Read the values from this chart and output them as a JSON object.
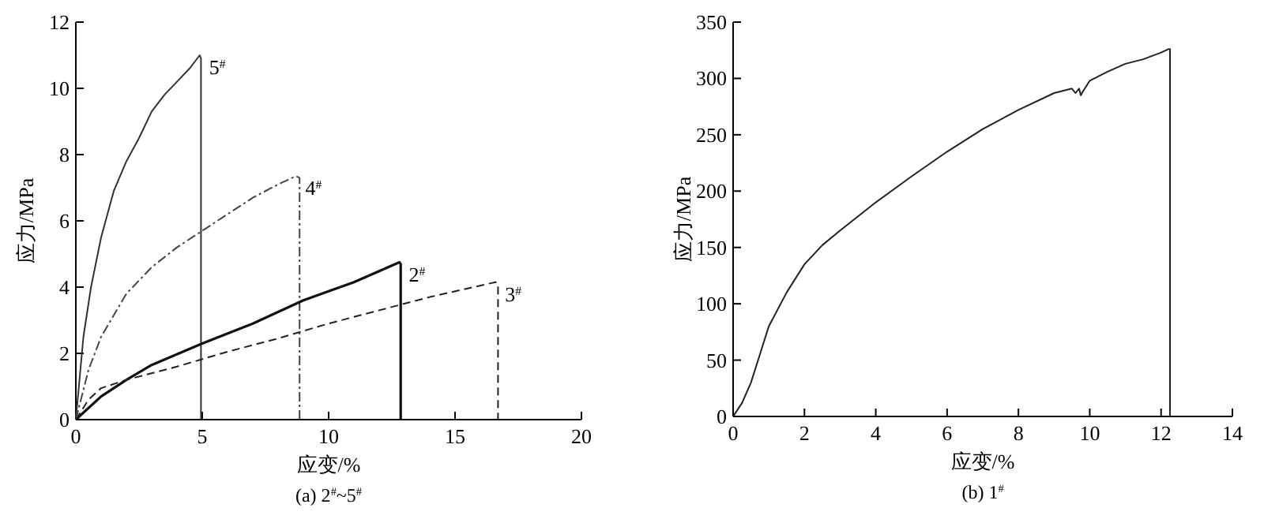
{
  "chart_data": [
    {
      "type": "line",
      "title": "(a) 2$^{#}$~5$^{#}$",
      "xlabel": "应变/%",
      "ylabel": "应力/MPa",
      "xlim": [
        0,
        20
      ],
      "xticks": [
        0,
        5,
        10,
        15,
        20
      ],
      "ylim": [
        0,
        12
      ],
      "yticks": [
        0,
        2,
        4,
        6,
        8,
        10,
        12
      ],
      "grid": false,
      "marker": "none",
      "series": [
        {
          "name": "5$^{#}$",
          "color": "#333333",
          "line_style": "solid",
          "x": [
            0,
            0.3,
            0.6,
            1,
            1.5,
            2,
            2.5,
            3,
            3.5,
            4,
            4.5,
            4.9,
            4.95,
            4.95
          ],
          "values": [
            0,
            2.5,
            4,
            5.5,
            6.9,
            7.8,
            8.5,
            9.3,
            9.8,
            10.2,
            10.6,
            11,
            10.9,
            0
          ]
        },
        {
          "name": "4$^{#}$",
          "color": "#444444",
          "line_style": "dashdot",
          "x": [
            0,
            0.5,
            1,
            2,
            3,
            4,
            5,
            6,
            7,
            8,
            8.7,
            8.85,
            8.85
          ],
          "values": [
            0,
            1.5,
            2.5,
            3.8,
            4.6,
            5.2,
            5.7,
            6.2,
            6.7,
            7.1,
            7.35,
            7.3,
            0
          ]
        },
        {
          "name": "2$^{#}$",
          "color": "#111111",
          "line_style": "solid",
          "x": [
            0,
            1,
            2,
            3,
            5,
            7,
            9,
            11,
            12.8,
            12.85,
            12.85
          ],
          "values": [
            0,
            0.7,
            1.2,
            1.65,
            2.3,
            2.9,
            3.6,
            4.15,
            4.75,
            4.7,
            0
          ]
        },
        {
          "name": "3$^{#}$",
          "color": "#222222",
          "line_style": "dashed",
          "x": [
            0,
            0.5,
            1,
            2,
            4,
            6,
            8,
            10,
            12,
            14,
            16.6,
            16.7,
            16.7
          ],
          "values": [
            0,
            0.6,
            0.95,
            1.2,
            1.6,
            2.05,
            2.45,
            2.9,
            3.3,
            3.7,
            4.15,
            4.1,
            0
          ]
        }
      ]
    },
    {
      "type": "line",
      "title": "(b) 1$^{#}$",
      "xlabel": "应变/%",
      "ylabel": "应力/MPa",
      "xlim": [
        0,
        14
      ],
      "xticks": [
        0,
        2,
        4,
        6,
        8,
        10,
        12,
        14
      ],
      "ylim": [
        0,
        350
      ],
      "yticks": [
        0,
        50,
        100,
        150,
        200,
        250,
        300,
        350
      ],
      "grid": false,
      "marker": "none",
      "series": [
        {
          "color": "#222222",
          "line_style": "solid",
          "x": [
            0,
            0.25,
            0.5,
            0.75,
            1,
            1.5,
            2,
            2.5,
            3,
            4,
            5,
            6,
            7,
            8,
            9,
            9.5,
            9.6,
            9.7,
            9.75,
            9.8,
            9.9,
            10,
            10.5,
            11,
            11.5,
            12,
            12.2,
            12.25,
            12.25
          ],
          "values": [
            0,
            12,
            30,
            55,
            80,
            110,
            135,
            152,
            165,
            190,
            213,
            235,
            255,
            272,
            287,
            291,
            287,
            291,
            285,
            288,
            293,
            298,
            306,
            313,
            317,
            323,
            326,
            326,
            0
          ]
        }
      ]
    }
  ]
}
